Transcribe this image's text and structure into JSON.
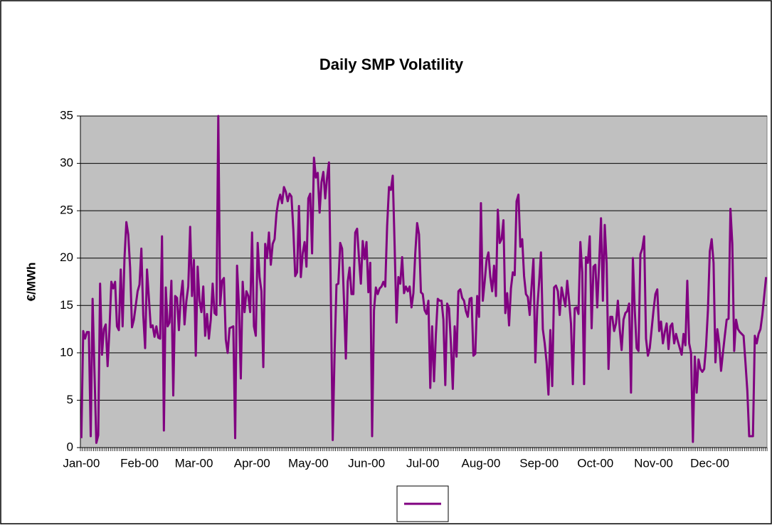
{
  "chart_data": {
    "type": "line",
    "title": "Daily SMP Volatility",
    "y_label": "€/MWh",
    "categories": [
      "Jan-00",
      null,
      null,
      null,
      null,
      null,
      null,
      null,
      null,
      null,
      null,
      null,
      null,
      null,
      null,
      null,
      null,
      null,
      null,
      null,
      null,
      null,
      null,
      null,
      null,
      null,
      null,
      null,
      null,
      null,
      null,
      "Feb-00",
      null,
      null,
      null,
      null,
      null,
      null,
      null,
      null,
      null,
      null,
      null,
      null,
      null,
      null,
      null,
      null,
      null,
      null,
      null,
      null,
      null,
      null,
      null,
      null,
      null,
      null,
      null,
      null,
      "Mar-00",
      null,
      null,
      null,
      null,
      null,
      null,
      null,
      null,
      null,
      null,
      null,
      null,
      null,
      null,
      null,
      null,
      null,
      null,
      null,
      null,
      null,
      null,
      null,
      null,
      null,
      null,
      null,
      null,
      null,
      null,
      "Apr-00",
      null,
      null,
      null,
      null,
      null,
      null,
      null,
      null,
      null,
      null,
      null,
      null,
      null,
      null,
      null,
      null,
      null,
      null,
      null,
      null,
      null,
      null,
      null,
      null,
      null,
      null,
      null,
      null,
      null,
      "May-00",
      null,
      null,
      null,
      null,
      null,
      null,
      null,
      null,
      null,
      null,
      null,
      null,
      null,
      null,
      null,
      null,
      null,
      null,
      null,
      null,
      null,
      null,
      null,
      null,
      null,
      null,
      null,
      null,
      null,
      null,
      "Jun-00",
      null,
      null,
      null,
      null,
      null,
      null,
      null,
      null,
      null,
      null,
      null,
      null,
      null,
      null,
      null,
      null,
      null,
      null,
      null,
      null,
      null,
      null,
      null,
      null,
      null,
      null,
      null,
      null,
      null,
      "Jul-00",
      null,
      null,
      null,
      null,
      null,
      null,
      null,
      null,
      null,
      null,
      null,
      null,
      null,
      null,
      null,
      null,
      null,
      null,
      null,
      null,
      null,
      null,
      null,
      null,
      null,
      null,
      null,
      null,
      null,
      null,
      "Aug-00",
      null,
      null,
      null,
      null,
      null,
      null,
      null,
      null,
      null,
      null,
      null,
      null,
      null,
      null,
      null,
      null,
      null,
      null,
      null,
      null,
      null,
      null,
      null,
      null,
      null,
      null,
      null,
      null,
      null,
      null,
      "Sep-00",
      null,
      null,
      null,
      null,
      null,
      null,
      null,
      null,
      null,
      null,
      null,
      null,
      null,
      null,
      null,
      null,
      null,
      null,
      null,
      null,
      null,
      null,
      null,
      null,
      null,
      null,
      null,
      null,
      null,
      "Oct-00",
      null,
      null,
      null,
      null,
      null,
      null,
      null,
      null,
      null,
      null,
      null,
      null,
      null,
      null,
      null,
      null,
      null,
      null,
      null,
      null,
      null,
      null,
      null,
      null,
      null,
      null,
      null,
      null,
      null,
      null,
      "Nov-00",
      null,
      null,
      null,
      null,
      null,
      null,
      null,
      null,
      null,
      null,
      null,
      null,
      null,
      null,
      null,
      null,
      null,
      null,
      null,
      null,
      null,
      null,
      null,
      null,
      null,
      null,
      null,
      null,
      null,
      "Dec-00",
      null,
      null,
      null,
      null,
      null,
      null,
      null,
      null,
      null,
      null,
      null,
      null,
      null,
      null,
      null,
      null,
      null,
      null,
      null,
      null,
      null,
      null,
      null,
      null,
      null,
      null,
      null,
      null,
      null,
      null
    ],
    "series": [
      {
        "color": "#800080",
        "values": [
          1,
          12.3,
          11.5,
          12.2,
          12.2,
          1.2,
          15.7,
          8,
          0.5,
          1.3,
          17.3,
          9.8,
          12.5,
          13,
          8.6,
          12.5,
          17.5,
          16.8,
          17.5,
          12.8,
          12.4,
          18.8,
          12.8,
          20,
          23.8,
          22.5,
          19,
          12.7,
          13.5,
          15,
          16.5,
          17.2,
          21,
          14,
          10.5,
          18.8,
          15.8,
          12.7,
          12.9,
          11.7,
          12.8,
          11.6,
          11.5,
          22.3,
          1.8,
          16.9,
          12.8,
          13.2,
          17.6,
          5.5,
          16,
          15.8,
          12.4,
          15.9,
          17.6,
          13,
          15.5,
          17,
          23.3,
          16,
          19.8,
          9.7,
          19.1,
          15.5,
          14.3,
          17,
          11.8,
          14.1,
          11.5,
          13.5,
          17.3,
          14.2,
          14,
          35,
          15,
          17.6,
          17.9,
          11.4,
          10,
          12.6,
          12.7,
          12.8,
          1,
          19.2,
          15,
          7.3,
          17.5,
          14.3,
          16.5,
          16,
          14.3,
          22.7,
          12.8,
          11.8,
          21.6,
          18,
          16.5,
          8.5,
          21.5,
          20,
          22.7,
          19.3,
          21.5,
          22,
          24.7,
          26,
          26.7,
          25.8,
          27.5,
          27,
          26,
          26.8,
          26.5,
          23,
          18.1,
          18.5,
          25.5,
          18,
          20.5,
          21.7,
          19.1,
          26.3,
          26.8,
          20.5,
          30.6,
          28.5,
          29,
          24.8,
          28,
          29.1,
          26.3,
          28.5,
          30.1,
          16,
          0.8,
          10,
          17.2,
          17.3,
          21.6,
          21,
          15.5,
          9.4,
          17.5,
          19,
          16.2,
          16.2,
          22.7,
          23.1,
          20,
          17.3,
          21.8,
          19.9,
          21.7,
          16.4,
          19.5,
          1.2,
          14.5,
          16.9,
          16.2,
          16.8,
          17,
          17.5,
          17,
          23.4,
          27.5,
          27.2,
          28.7,
          21.3,
          13.2,
          18,
          17.3,
          20.1,
          16.3,
          17,
          16.5,
          17,
          14.8,
          16.3,
          20.5,
          23.7,
          22.5,
          16.4,
          16.2,
          14.5,
          14.1,
          15.5,
          6.3,
          12.8,
          7,
          12,
          15.7,
          15.5,
          15.5,
          13.5,
          6.6,
          15.2,
          14.7,
          11,
          6.2,
          12.8,
          9.6,
          16.5,
          16.7,
          15.8,
          15.5,
          14.4,
          13.8,
          15.7,
          15.8,
          9.7,
          9.9,
          16,
          13.8,
          25.8,
          15.5,
          17.5,
          19.8,
          20.6,
          18,
          16.5,
          19.2,
          16,
          25.1,
          21.6,
          22,
          24,
          14.2,
          16.3,
          12.9,
          16.8,
          18.5,
          18.2,
          26,
          26.7,
          21.2,
          22,
          18.1,
          16.2,
          15.9,
          14,
          17,
          19.9,
          9,
          14.6,
          17.4,
          20.6,
          12.5,
          11,
          9,
          5.6,
          12.4,
          6.5,
          16.9,
          17.1,
          16.5,
          14,
          16.9,
          15.9,
          14.9,
          17.6,
          15.5,
          13.1,
          6.7,
          14.7,
          14.8,
          14.1,
          21.7,
          18.5,
          6.7,
          20.1,
          19.5,
          22.3,
          12.6,
          19.1,
          19.3,
          14.8,
          19.4,
          24.2,
          15.5,
          23.5,
          19.5,
          8.3,
          13.8,
          13.8,
          12.3,
          13.1,
          15.5,
          12.5,
          10.3,
          13.5,
          14.2,
          14.4,
          15.2,
          5.8,
          20,
          14.5,
          10.5,
          10.2,
          20.4,
          21,
          22.3,
          11.5,
          9.7,
          10.5,
          12.5,
          14.5,
          16.2,
          16.7,
          12.3,
          13.3,
          11,
          12.2,
          13.1,
          10.4,
          12.8,
          13.1,
          11,
          12,
          11.2,
          10.5,
          9.8,
          12,
          10.8,
          17.6,
          11,
          10,
          0.6,
          9.6,
          5.8,
          9.3,
          8.3,
          8,
          8.3,
          10.7,
          14.5,
          20.7,
          22,
          19.5,
          9,
          12.5,
          11,
          8.1,
          10,
          11.8,
          13.5,
          13.6,
          25.2,
          21.5,
          10.2,
          13.5,
          12.5,
          12.2,
          12,
          11.8,
          9,
          6,
          1.2,
          1.2,
          1.2,
          11.8,
          11,
          12,
          12.5,
          14,
          16,
          18
        ]
      }
    ],
    "ylim": [
      0,
      35
    ],
    "yticks": [
      0,
      5,
      10,
      15,
      20,
      25,
      30,
      35
    ],
    "grid": true,
    "plot_background": "#c0c0c0",
    "legend": "bottom"
  }
}
